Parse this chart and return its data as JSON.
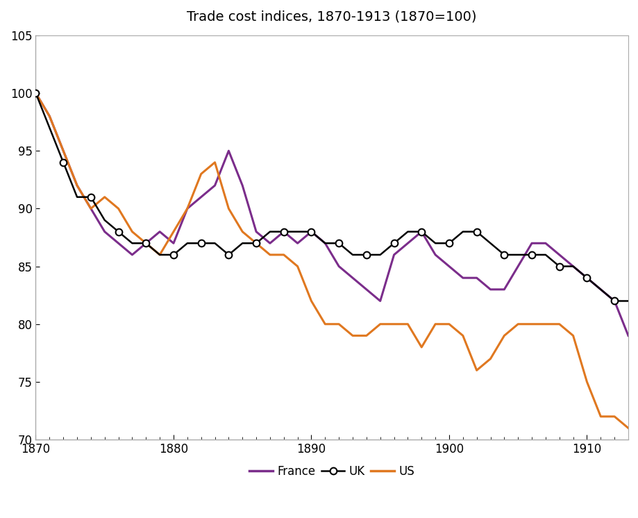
{
  "title": "Trade cost indices, 1870-1913 (1870=100)",
  "title_fontsize": 14,
  "xlim": [
    1870,
    1913
  ],
  "ylim": [
    70,
    105
  ],
  "yticks": [
    70,
    75,
    80,
    85,
    90,
    95,
    100,
    105
  ],
  "xticks": [
    1870,
    1880,
    1890,
    1900,
    1910
  ],
  "france_color": "#7B2D8B",
  "uk_color": "#000000",
  "us_color": "#E07820",
  "france_x": [
    1870,
    1871,
    1872,
    1873,
    1874,
    1875,
    1876,
    1877,
    1878,
    1879,
    1880,
    1881,
    1882,
    1883,
    1884,
    1885,
    1886,
    1887,
    1888,
    1889,
    1890,
    1891,
    1892,
    1893,
    1894,
    1895,
    1896,
    1897,
    1898,
    1899,
    1900,
    1901,
    1902,
    1903,
    1904,
    1905,
    1906,
    1907,
    1908,
    1909,
    1910,
    1911,
    1912,
    1913
  ],
  "france_y": [
    100,
    98,
    95,
    92,
    90,
    88,
    87,
    86,
    87,
    88,
    87,
    90,
    91,
    92,
    95,
    92,
    88,
    87,
    88,
    87,
    88,
    87,
    85,
    84,
    83,
    82,
    86,
    87,
    88,
    86,
    85,
    84,
    84,
    83,
    83,
    85,
    87,
    87,
    86,
    85,
    84,
    83,
    82,
    79
  ],
  "uk_x": [
    1870,
    1871,
    1872,
    1873,
    1874,
    1875,
    1876,
    1877,
    1878,
    1879,
    1880,
    1881,
    1882,
    1883,
    1884,
    1885,
    1886,
    1887,
    1888,
    1889,
    1890,
    1891,
    1892,
    1893,
    1894,
    1895,
    1896,
    1897,
    1898,
    1899,
    1900,
    1901,
    1902,
    1903,
    1904,
    1905,
    1906,
    1907,
    1908,
    1909,
    1910,
    1911,
    1912,
    1913
  ],
  "uk_y": [
    100,
    97,
    94,
    91,
    91,
    89,
    88,
    87,
    87,
    86,
    86,
    87,
    87,
    87,
    86,
    87,
    87,
    88,
    88,
    88,
    88,
    87,
    87,
    86,
    86,
    86,
    87,
    88,
    88,
    87,
    87,
    88,
    88,
    87,
    86,
    86,
    86,
    86,
    85,
    85,
    84,
    83,
    82,
    82
  ],
  "uk_marker_step": 2,
  "us_x": [
    1870,
    1871,
    1872,
    1873,
    1874,
    1875,
    1876,
    1877,
    1878,
    1879,
    1880,
    1881,
    1882,
    1883,
    1884,
    1885,
    1886,
    1887,
    1888,
    1889,
    1890,
    1891,
    1892,
    1893,
    1894,
    1895,
    1896,
    1897,
    1898,
    1899,
    1900,
    1901,
    1902,
    1903,
    1904,
    1905,
    1906,
    1907,
    1908,
    1909,
    1910,
    1911,
    1912,
    1913
  ],
  "us_y": [
    100,
    98,
    95,
    92,
    90,
    91,
    90,
    88,
    87,
    86,
    88,
    90,
    93,
    94,
    90,
    88,
    87,
    86,
    86,
    85,
    82,
    80,
    80,
    79,
    79,
    80,
    80,
    80,
    78,
    80,
    80,
    79,
    76,
    77,
    79,
    80,
    80,
    80,
    80,
    79,
    75,
    72,
    72,
    71
  ]
}
